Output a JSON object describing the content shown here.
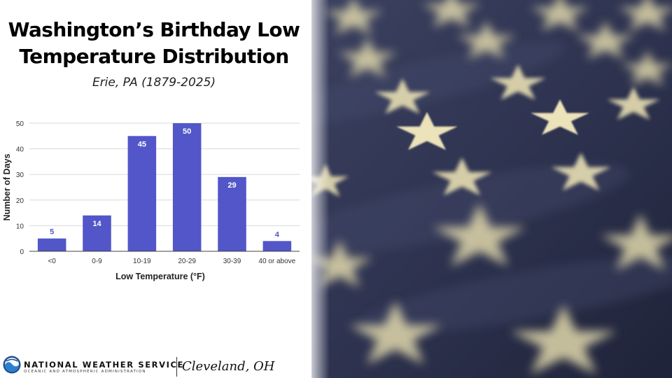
{
  "title": "Washington’s Birthday Low Temperature Distribution",
  "subtitle": "Erie, PA (1879-2025)",
  "chart_data": {
    "type": "bar",
    "categories": [
      "<0",
      "0-9",
      "10-19",
      "20-29",
      "30-39",
      "40 or above"
    ],
    "values": [
      5,
      14,
      45,
      50,
      29,
      4
    ],
    "xlabel": "Low Temperature (°F)",
    "ylabel": "Number of Days",
    "ylim": [
      0,
      50
    ],
    "yticks": [
      0,
      10,
      20,
      30,
      40,
      50
    ],
    "grid": true,
    "bar_color": "#5256c8",
    "data_labels": true
  },
  "footer": {
    "agency": "NATIONAL WEATHER SERVICE",
    "agency_sub": "OCEANIC AND ATMOSPHERIC ADMINISTRATION",
    "office": "Cleveland, OH"
  },
  "background_image": {
    "icon": "american-flag-stars-photo",
    "colors": {
      "fabric": "#2e3350",
      "star": "#e6dcaa"
    }
  }
}
